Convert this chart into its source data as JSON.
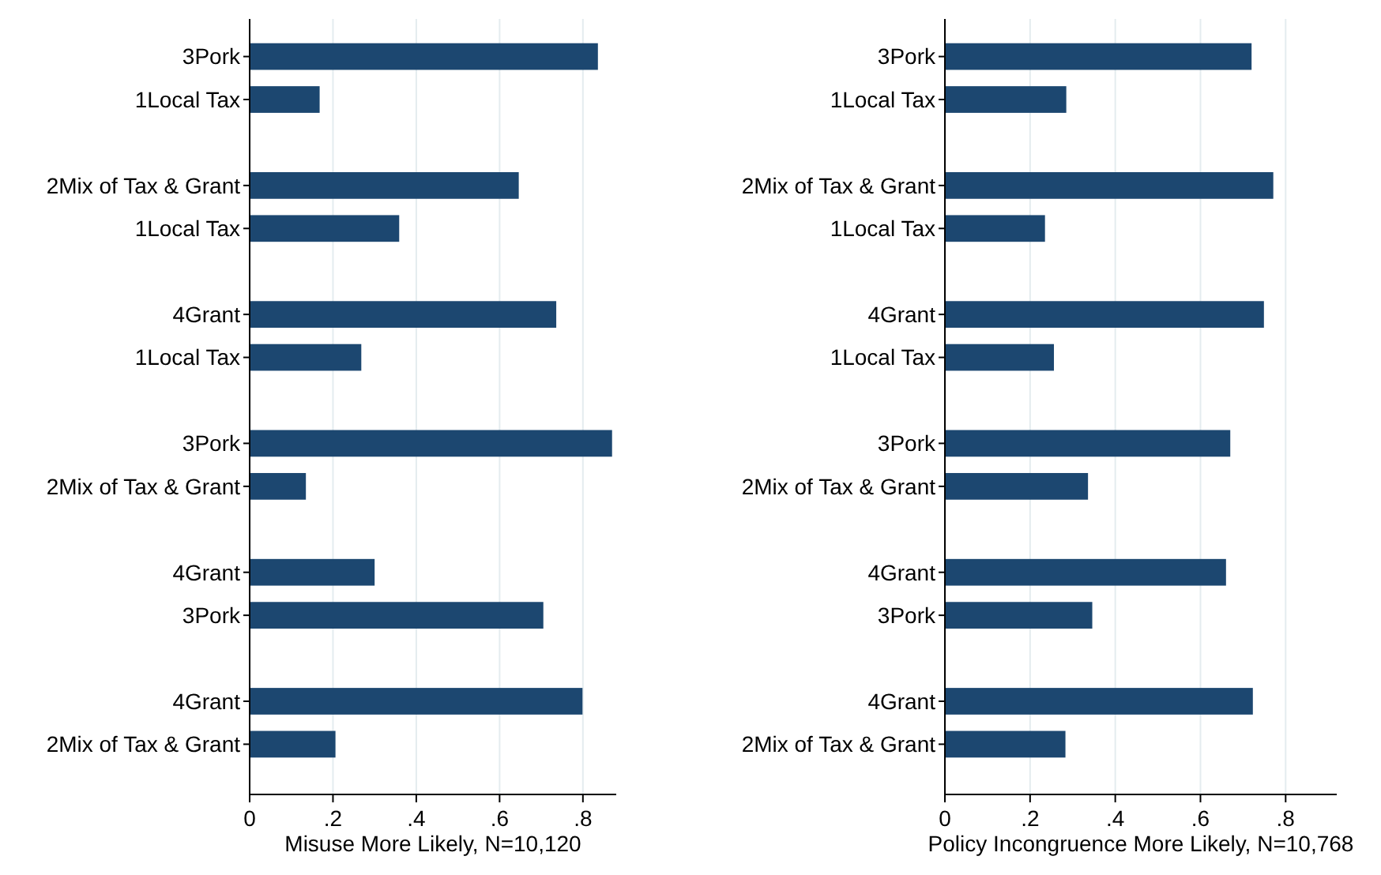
{
  "chart_data": [
    {
      "type": "bar",
      "orientation": "horizontal",
      "xlabel": "Misuse More Likely, N=10,120",
      "categories": [
        "3Pork",
        "1Local Tax",
        null,
        "2Mix of Tax & Grant",
        "1Local Tax",
        null,
        "4Grant",
        "1Local Tax",
        null,
        "3Pork",
        "2Mix of Tax & Grant",
        null,
        "4Grant",
        "3Pork",
        null,
        "4Grant",
        "2Mix of Tax & Grant"
      ],
      "values": [
        0.836,
        0.168,
        null,
        0.646,
        0.359,
        null,
        0.736,
        0.268,
        null,
        0.87,
        0.135,
        null,
        0.3,
        0.705,
        null,
        0.799,
        0.206
      ],
      "color": "#1c4770",
      "xlim": [
        0,
        0.88
      ],
      "xticks": [
        0,
        {
          "value": 0.2,
          "label": ".2"
        },
        {
          "value": 0.4,
          "label": ".4"
        },
        {
          "value": 0.6,
          "label": ".6"
        },
        {
          "value": 0.8,
          "label": ".8"
        }
      ],
      "grid": "x"
    },
    {
      "type": "bar",
      "orientation": "horizontal",
      "xlabel": "Policy Incongruence More Likely, N=10,768",
      "categories": [
        "3Pork",
        "1Local Tax",
        null,
        "2Mix of Tax & Grant",
        "1Local Tax",
        null,
        "4Grant",
        "1Local Tax",
        null,
        "3Pork",
        "2Mix of Tax & Grant",
        null,
        "4Grant",
        "3Pork",
        null,
        "4Grant",
        "2Mix of Tax & Grant"
      ],
      "values": [
        0.72,
        0.285,
        null,
        0.771,
        0.235,
        null,
        0.749,
        0.256,
        null,
        0.67,
        0.336,
        null,
        0.66,
        0.346,
        null,
        0.723,
        0.283
      ],
      "color": "#1c4770",
      "xlim": [
        0,
        0.92
      ],
      "xticks": [
        0,
        {
          "value": 0.2,
          "label": ".2"
        },
        {
          "value": 0.4,
          "label": ".4"
        },
        {
          "value": 0.6,
          "label": ".6"
        },
        {
          "value": 0.8,
          "label": ".8"
        }
      ],
      "grid": "x"
    }
  ]
}
